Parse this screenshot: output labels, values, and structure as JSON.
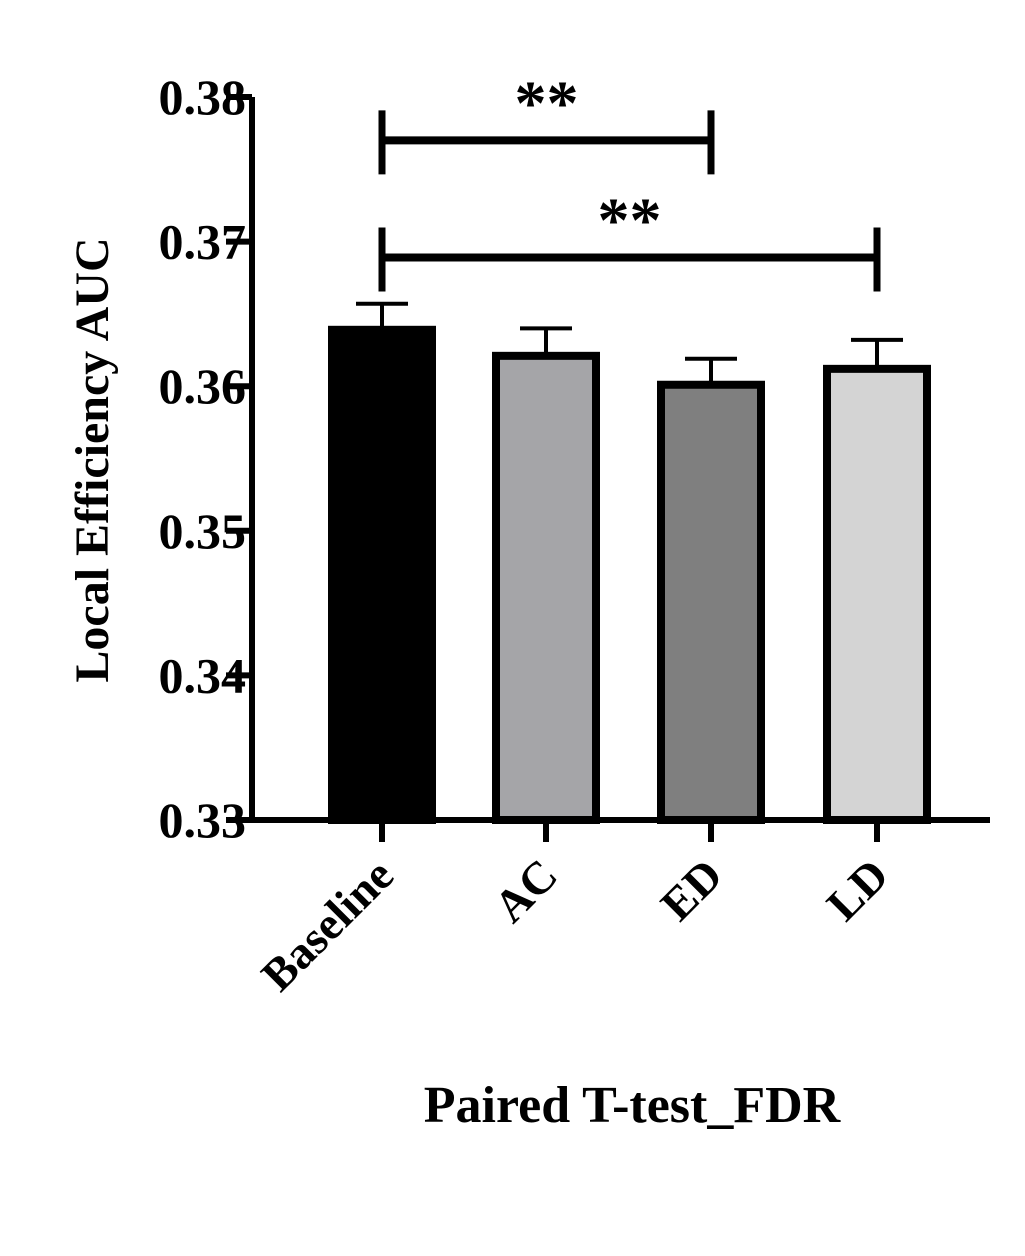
{
  "chart_data": {
    "type": "bar",
    "title": "",
    "xlabel": "Paired T-test_FDR",
    "ylabel": "Local Efficiency AUC",
    "ylim": [
      0.33,
      0.38
    ],
    "yticks": [
      "0.33",
      "0.34",
      "0.35",
      "0.36",
      "0.37",
      "0.38"
    ],
    "grid": false,
    "legend": "none",
    "categories": [
      "Baseline",
      "AC",
      "ED",
      "LD"
    ],
    "values": [
      0.3639,
      0.3621,
      0.3601,
      0.3612
    ],
    "errors": [
      0.0018,
      0.0019,
      0.0018,
      0.002
    ],
    "colors": [
      "#000000",
      "#a5a5a8",
      "#7f7f7f",
      "#d4d4d4"
    ],
    "annotations": [
      {
        "from": "Baseline",
        "to": "ED",
        "label": "**",
        "y": 0.377
      },
      {
        "from": "Baseline",
        "to": "LD",
        "label": "**",
        "y": 0.3689
      }
    ]
  }
}
